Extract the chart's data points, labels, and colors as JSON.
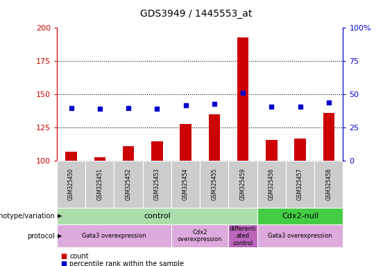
{
  "title": "GDS3949 / 1445553_at",
  "samples": [
    "GSM325450",
    "GSM325451",
    "GSM325452",
    "GSM325453",
    "GSM325454",
    "GSM325455",
    "GSM325459",
    "GSM325456",
    "GSM325457",
    "GSM325458"
  ],
  "count_values": [
    107,
    103,
    111,
    115,
    128,
    135,
    193,
    116,
    117,
    136
  ],
  "percentile_values": [
    40,
    39,
    40,
    39,
    42,
    43,
    51,
    41,
    41,
    44
  ],
  "ylim_left": [
    100,
    200
  ],
  "ylim_right": [
    0,
    100
  ],
  "yticks_left": [
    100,
    125,
    150,
    175,
    200
  ],
  "yticks_right": [
    0,
    25,
    50,
    75,
    100
  ],
  "bar_color": "#cc0000",
  "dot_color": "#0000cc",
  "genotype_groups": [
    {
      "label": "control",
      "start": 0,
      "end": 7,
      "color": "#aaddaa"
    },
    {
      "label": "Cdx2-null",
      "start": 7,
      "end": 10,
      "color": "#44cc44"
    }
  ],
  "protocol_groups": [
    {
      "label": "Gata3 overexpression",
      "start": 0,
      "end": 4,
      "color": "#ddaadd"
    },
    {
      "label": "Cdx2\noverexpression",
      "start": 4,
      "end": 6,
      "color": "#ddaadd"
    },
    {
      "label": "differenti\nated\ncontrol",
      "start": 6,
      "end": 7,
      "color": "#bb66bb"
    },
    {
      "label": "Gata3 overexpression",
      "start": 7,
      "end": 10,
      "color": "#ddaadd"
    }
  ],
  "left_label_color": "#cc0000",
  "right_label_color": "#0000cc",
  "background_color": "#ffffff",
  "tick_label_area_color": "#cccccc",
  "bar_baseline": 100,
  "title_fontsize": 10
}
